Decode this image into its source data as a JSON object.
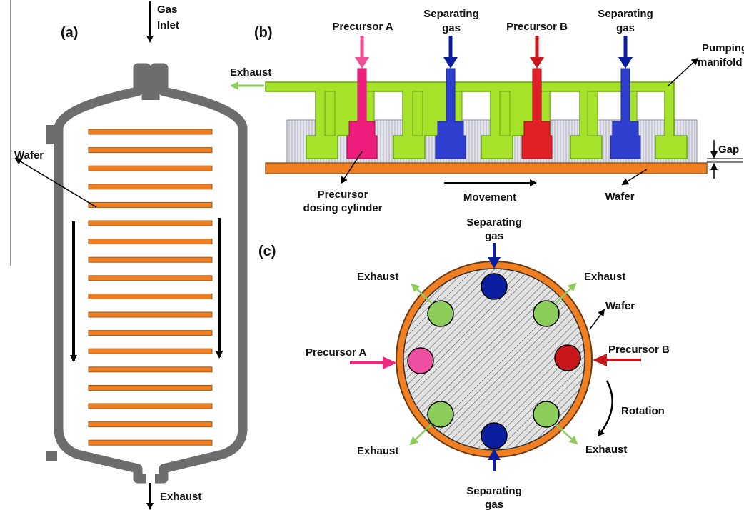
{
  "panel_a": {
    "tag": "(a)",
    "gas_inlet_line1": "Gas",
    "gas_inlet_line2": "Inlet",
    "wafer": "Wafer",
    "exhaust": "Exhaust",
    "wafer_count": 18
  },
  "panel_b": {
    "tag": "(b)",
    "precursor_a": "Precursor A",
    "separating_gas_1_line1": "Separating",
    "separating_gas_1_line2": "gas",
    "precursor_b": "Precursor B",
    "separating_gas_2_line1": "Separating",
    "separating_gas_2_line2": "gas",
    "pumping_line1": "Pumping",
    "pumping_line2": "manifold",
    "exhaust": "Exhaust",
    "gap": "Gap",
    "dosing_line1": "Precursor",
    "dosing_line2": "dosing cylinder",
    "movement": "Movement",
    "wafer": "Wafer"
  },
  "panel_c": {
    "tag": "(c)",
    "sep_top_line1": "Separating",
    "sep_top_line2": "gas",
    "exhaust_tl": "Exhaust",
    "exhaust_tr": "Exhaust",
    "wafer": "Wafer",
    "precursor_a": "Precursor A",
    "precursor_b": "Precursor B",
    "rotation": "Rotation",
    "exhaust_bl": "Exhaust",
    "exhaust_br": "Exhaust",
    "sep_bottom_line1": "Separating",
    "sep_bottom_line2": "gas"
  },
  "colors": {
    "chamber": "#6d6d6d",
    "wafer_orange": "#f07f22",
    "wafer_stripe": "#9a5a1c",
    "manifold_green": "#a6e22a",
    "manifold_edge": "#6aa316",
    "precursor_a": "#ee1c7a",
    "precursor_b": "#e11f26",
    "separating_blue": "#2e3fcf",
    "separating_navy": "#0b1ea0",
    "exhaust_green": "#8ccc5a",
    "hatch_bg": "#d8d8d8"
  }
}
